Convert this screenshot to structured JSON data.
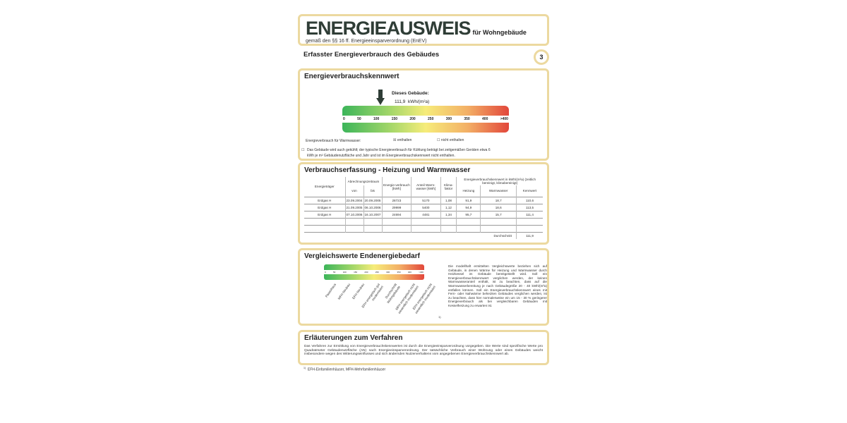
{
  "header": {
    "title": "ENERGIEAUSWEIS",
    "title_suffix": "für Wohngebäude",
    "subtitle": "gemäß den §§ 16 ff. Energieeinsparverordnung (EnEV)"
  },
  "section": {
    "title": "Erfasster Energieverbrauch des Gebäudes",
    "page_number": "3"
  },
  "kennwert": {
    "heading": "Energieverbrauchskennwert",
    "building_label": "Dieses Gebäude:",
    "value": "111,9",
    "unit": "kWh/(m²a)",
    "value_number": 111.9,
    "scale_ticks": [
      "0",
      "50",
      "100",
      "150",
      "200",
      "250",
      "300",
      "350",
      "400",
      ">400"
    ],
    "warmwasser_label": "Energieverbrauch für Warmwasser:",
    "opt_enthalten": "enthalten",
    "opt_nicht": "nicht enthalten",
    "enthalten_checked": true,
    "cooling_note": "Das Gebäude wird auch gekühlt; der typische Energieverbrauch für Kühlung beträgt bei zeitgemäßen Geräten etwa 6 kWh je m² Gebäudenutzfläche und Jahr und ist im Energieverbrauchskennwert nicht enthalten."
  },
  "verbrauch": {
    "heading": "Verbrauchserfassung - Heizung und Warmwasser",
    "headers": {
      "traeger": "Energieträger",
      "zeitraum": "Abrechnungszeitraum",
      "von": "von",
      "bis": "bis",
      "verbrauch": "Energie-verbrauch [kWh]",
      "anteil": "Anteil Warm-wasser [kWh]",
      "klima": "Klima-faktor",
      "kennwert_group": "Energieverbrauchskennwert in kWh/(m²a) (zeitlich bereinigt, klimabereinigt)",
      "heizung": "Heizung",
      "warmwasser": "Warmwasser",
      "kennwert": "Kennwert"
    },
    "rows": [
      [
        "Erdgas H",
        "23.09.2004",
        "20.09.2005",
        "28723",
        "5170",
        "1,08",
        "91,9",
        "18,7",
        "110,6"
      ],
      [
        "Erdgas H",
        "21.09.2005",
        "06.10.2006",
        "29999",
        "5400",
        "1,12",
        "94,9",
        "18,6",
        "113,5"
      ],
      [
        "Erdgas H",
        "07.10.2006",
        "16.10.2007",
        "24694",
        "4481",
        "1,34",
        "95,7",
        "15,7",
        "111,4"
      ]
    ],
    "avg_label": "Durchschnitt",
    "avg_value": "111,9"
  },
  "vergleich": {
    "heading": "Vergleichswerte Endenergiebedarf",
    "labels": [
      "Passivhaus",
      "MFH Neubau",
      "EFH Neubau",
      "EFH energetisch gut modernisiert",
      "Durchschnitt Wohngebäude",
      "MFH energetisch nicht wesentlich modernisiert",
      "EFH energetisch nicht wesentlich modernisiert"
    ],
    "footnote_mark": "1)",
    "text": "Die modellhaft ermittelten Vergleichswerte beziehen sich auf Gebäude, in denen Wärme für Heizung und Warmwasser durch Heizkessel im Gebäude bereitgestellt wird. Soll ein Energieverbrauchskennwert verglichen werden, der keinen Warmwasseranteil enthält, ist zu beachten, dass auf die Warmwasserbereitung je nach Gebäudegröße 20 - 40 kWh/(m²a) entfallen können. Soll ein Energieverbrauchskennwert eines mit Fern- oder Nahwärme beheizten Gebäudes verglichen werden, ist zu beachten, dass hier normalerweise ein um 15 - 30 % geringerer Energieverbrauch als bei vergleichbaren Gebäuden mit Kesselheizung zu erwarten ist."
  },
  "erlaeuterung": {
    "heading": "Erläuterungen zum Verfahren",
    "text": "Das Verfahren zur Ermittlung von Energieverbrauchskennwerten ist durch die Energieeinsparverordnung vorgegeben. Die Werte sind spezifische Werte pro Quadratmeter Gebäudenutzfläche (AN) nach Energieeinsparverordnung. Der tatsächliche Verbrauch einer Wohnung oder eines Gebäudes weicht insbesondere wegen des Witterungseinflusses und sich ändernden Nutzerverhaltens vom angegebenen Energieverbrauchskennwert ab."
  },
  "footnote": {
    "mark": "1)",
    "text": "EFH-Einfamilienhäuser, MFH-Mehrfamilienhäuser"
  }
}
